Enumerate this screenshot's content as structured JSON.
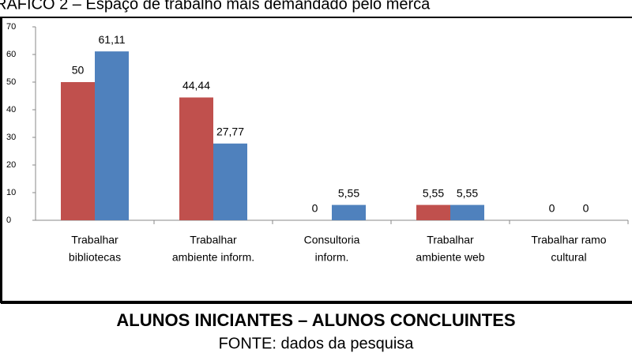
{
  "chart_data": {
    "type": "bar",
    "title": "RAFICO 2 – Espaço de trabalho mais demandado pelo merca",
    "categories": [
      [
        "Trabalhar",
        "bibliotecas"
      ],
      [
        "Trabalhar",
        "ambiente inform."
      ],
      [
        "Consultoria",
        "inform."
      ],
      [
        "Trabalhar",
        "ambiente web"
      ],
      [
        "Trabalhar ramo",
        "cultural"
      ]
    ],
    "series": [
      {
        "color": "#c0504d",
        "values": [
          50,
          44.44,
          0,
          5.55,
          0
        ],
        "value_labels": [
          "50",
          "44,44",
          "0",
          "5,55",
          "0"
        ]
      },
      {
        "color": "#4f81bd",
        "values": [
          61.11,
          27.77,
          5.55,
          5.55,
          0
        ],
        "value_labels": [
          "61,11",
          "27,77",
          "5,55",
          "5,55",
          "0"
        ]
      }
    ],
    "ylim": [
      0,
      70
    ],
    "yticks": [
      0,
      10,
      20,
      30,
      40,
      50,
      60,
      70
    ],
    "caption": "ALUNOS INICIANTES – ALUNOS CONCLUINTES",
    "source": "FONTE: dados da pesquisa"
  }
}
